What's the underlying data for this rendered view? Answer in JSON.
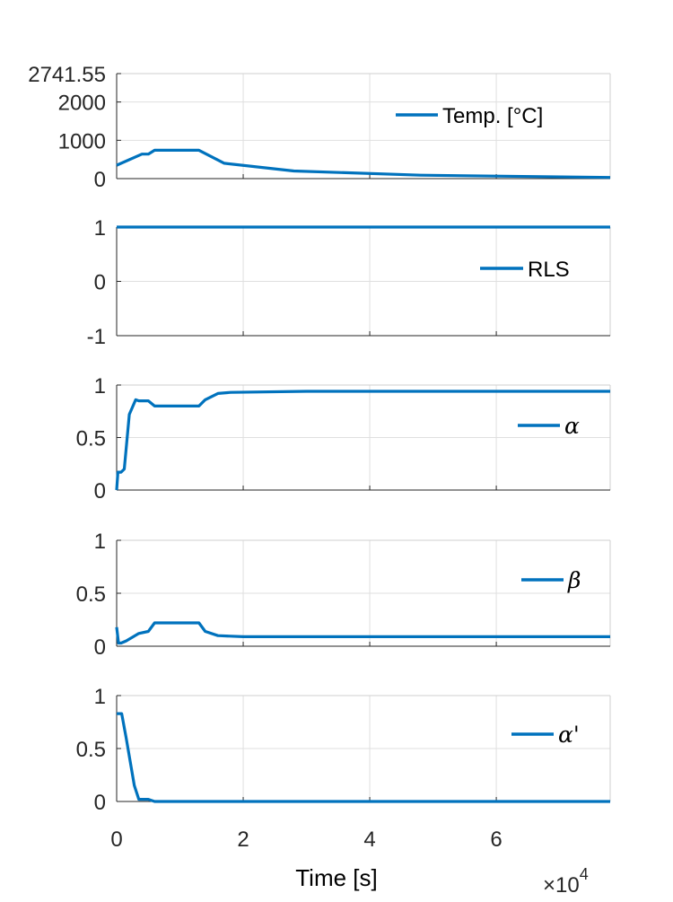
{
  "chart_data": {
    "type": "line",
    "line_color": "#0072BD",
    "grid": true,
    "shared_x": {
      "label": "Time [s]",
      "multiplier_label": "×10",
      "multiplier_exponent": "4",
      "xlim": [
        0,
        7.8
      ],
      "ticks": [
        0,
        2,
        4,
        6
      ],
      "tick_labels": [
        "0",
        "2",
        "4",
        "6"
      ]
    },
    "panels": [
      {
        "legend": "Temp. [°C]",
        "legend_style": "text",
        "ylim": [
          0,
          2741.55
        ],
        "yticks": [
          0,
          1000,
          2000,
          2741.55
        ],
        "ytick_labels": [
          "0",
          "1000",
          "2000",
          "2741.55"
        ],
        "x": [
          0,
          0.4,
          0.5,
          0.6,
          1.3,
          1.7,
          2.8,
          4.8,
          7.8
        ],
        "y": [
          350,
          640,
          640,
          740,
          740,
          400,
          200,
          90,
          30
        ]
      },
      {
        "legend": "RLS",
        "legend_style": "text",
        "ylim": [
          -1,
          1
        ],
        "yticks": [
          -1,
          0,
          1
        ],
        "ytick_labels": [
          "-1",
          "0",
          "1"
        ],
        "x": [
          0,
          7.8
        ],
        "y": [
          1,
          1
        ]
      },
      {
        "legend": "α",
        "legend_style": "math",
        "ylim": [
          0,
          1
        ],
        "yticks": [
          0,
          0.5,
          1
        ],
        "ytick_labels": [
          "0",
          "0.5",
          "1"
        ],
        "x": [
          0,
          0.02,
          0.07,
          0.12,
          0.2,
          0.3,
          0.35,
          0.5,
          0.6,
          1.3,
          1.4,
          1.6,
          1.8,
          3,
          7.8
        ],
        "y": [
          0,
          0.17,
          0.17,
          0.2,
          0.72,
          0.86,
          0.85,
          0.85,
          0.8,
          0.8,
          0.86,
          0.92,
          0.93,
          0.94,
          0.94
        ]
      },
      {
        "legend": "β",
        "legend_style": "math",
        "ylim": [
          0,
          1
        ],
        "yticks": [
          0,
          0.5,
          1
        ],
        "ytick_labels": [
          "0",
          "0.5",
          "1"
        ],
        "x": [
          0,
          0.03,
          0.07,
          0.15,
          0.35,
          0.5,
          0.6,
          1.3,
          1.4,
          1.6,
          2,
          7.8
        ],
        "y": [
          0.18,
          0.03,
          0.03,
          0.05,
          0.12,
          0.14,
          0.22,
          0.22,
          0.14,
          0.1,
          0.09,
          0.09
        ]
      },
      {
        "legend": "α'",
        "legend_style": "math",
        "ylim": [
          0,
          1
        ],
        "yticks": [
          0,
          0.5,
          1
        ],
        "ytick_labels": [
          "0",
          "0.5",
          "1"
        ],
        "x": [
          0,
          0.08,
          0.15,
          0.28,
          0.35,
          0.5,
          0.6,
          7.8
        ],
        "y": [
          0.83,
          0.83,
          0.6,
          0.15,
          0.02,
          0.02,
          0.0,
          0.0
        ]
      }
    ]
  }
}
